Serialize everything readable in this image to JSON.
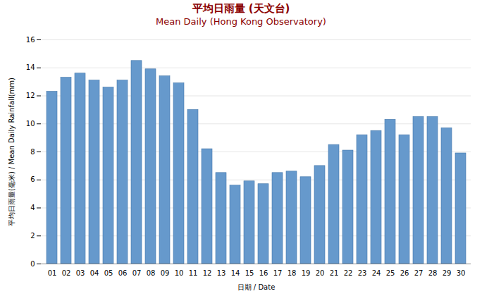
{
  "chart_data": {
    "type": "bar",
    "title": "平均日雨量 (天文台)",
    "subtitle": "Mean Daily (Hong Kong Observatory)",
    "x_label": "日期 / Date",
    "y_label": "平均日雨量(毫米) / Mean Daily Rainfall(mm)",
    "categories": [
      "01",
      "02",
      "03",
      "04",
      "05",
      "06",
      "07",
      "08",
      "09",
      "10",
      "11",
      "12",
      "13",
      "14",
      "15",
      "16",
      "17",
      "18",
      "19",
      "20",
      "21",
      "22",
      "23",
      "24",
      "25",
      "26",
      "27",
      "28",
      "29",
      "30"
    ],
    "values": [
      12.3,
      13.3,
      13.6,
      13.1,
      12.6,
      13.1,
      14.5,
      13.9,
      13.4,
      12.9,
      11.0,
      8.2,
      6.5,
      5.6,
      5.9,
      5.7,
      6.5,
      6.6,
      6.2,
      7.0,
      8.5,
      8.1,
      9.2,
      9.5,
      10.3,
      9.2,
      10.5,
      10.5,
      9.7,
      7.9
    ],
    "color": "#6699cc",
    "ylim": [
      0,
      16
    ],
    "yticks": [
      0,
      2,
      4,
      6,
      8,
      10,
      12,
      14,
      16
    ],
    "grid": true
  }
}
